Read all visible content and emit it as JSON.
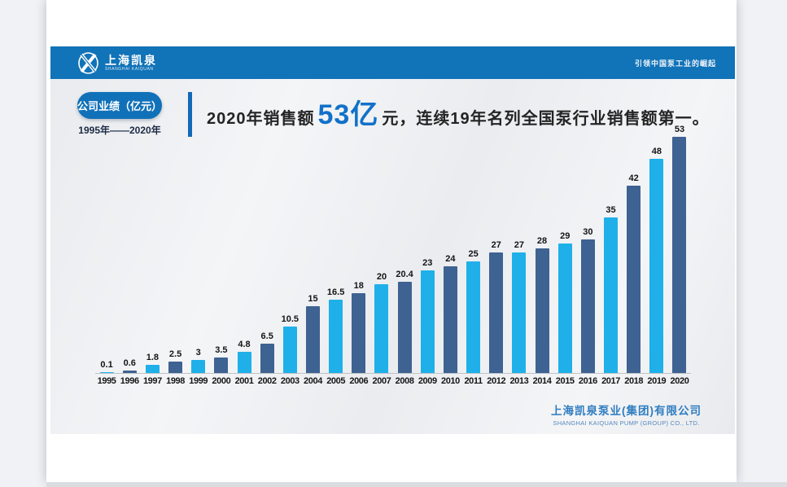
{
  "header": {
    "brand_cn": "上海凯泉",
    "brand_en": "SHANGHAI KAIQUAN",
    "slogan": "引领中国泵工业的崛起",
    "bar_color": "#1173b8"
  },
  "badge": {
    "label": "公司业绩（亿元）",
    "range": "1995年——2020年"
  },
  "headline": {
    "prefix": "2020年销售额",
    "highlight": "53亿",
    "suffix": "元，连续19年名列全国泵行业销售额第一。",
    "highlight_color": "#1271c8"
  },
  "chart_data": {
    "type": "bar",
    "title": "公司业绩（亿元）1995年——2020年",
    "xlabel": "",
    "ylabel": "",
    "categories": [
      1995,
      1996,
      1997,
      1998,
      1999,
      2000,
      2001,
      2002,
      2003,
      2004,
      2005,
      2006,
      2007,
      2008,
      2009,
      2010,
      2011,
      2012,
      2013,
      2014,
      2015,
      2016,
      2017,
      2018,
      2019,
      2020
    ],
    "values": [
      0.1,
      0.6,
      1.8,
      2.5,
      3,
      3.5,
      4.8,
      6.5,
      10.5,
      15,
      16.5,
      18,
      20,
      20.4,
      23,
      24,
      25,
      27,
      27,
      28,
      29,
      30,
      35,
      42,
      48,
      53
    ],
    "ylim": [
      0,
      53
    ],
    "grid": false,
    "legend": false,
    "value_labels_shown": true,
    "bar_colors_alternate": [
      "#1FB0E9",
      "#3E6292"
    ]
  },
  "footer": {
    "company_cn": "上海凯泉泵业(集团)有限公司",
    "company_en": "SHANGHAI KAIQUAN PUMP (GROUP) CO., LTD."
  }
}
